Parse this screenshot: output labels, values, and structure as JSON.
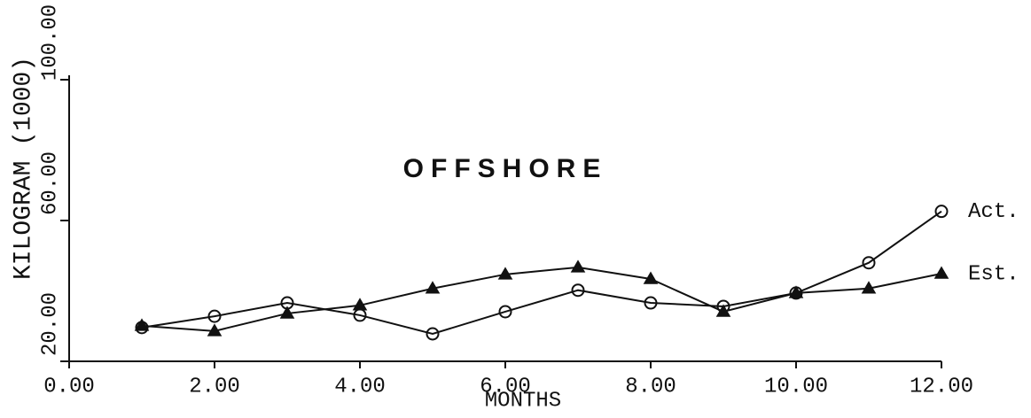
{
  "chart_data": {
    "type": "line",
    "title": "OFFSHORE",
    "xlabel": "MONTHS",
    "ylabel": "KILOGRAM (1000)",
    "xlim": [
      0,
      12
    ],
    "ylim": [
      20,
      100
    ],
    "xticks": [
      {
        "value": 0,
        "label": "0.00"
      },
      {
        "value": 2,
        "label": "2.00"
      },
      {
        "value": 4,
        "label": "4.00"
      },
      {
        "value": 6,
        "label": "6.00"
      },
      {
        "value": 8,
        "label": "8.00"
      },
      {
        "value": 10,
        "label": "10.00"
      },
      {
        "value": 12,
        "label": "12.00"
      }
    ],
    "yticks": [
      {
        "value": 20,
        "label": "20.00"
      },
      {
        "value": 60,
        "label": "60.00"
      },
      {
        "value": 100,
        "label": "100.00"
      }
    ],
    "x": [
      1,
      2,
      3,
      4,
      5,
      6,
      7,
      8,
      9,
      10,
      11,
      12
    ],
    "series": [
      {
        "name": "Act.",
        "color": "#111111",
        "marker": "circle",
        "values": [
          29.6,
          32.8,
          36.6,
          33.1,
          27.8,
          34.1,
          40.2,
          36.6,
          35.6,
          39.4,
          48.0,
          62.6
        ]
      },
      {
        "name": "Est.",
        "color": "#111111",
        "marker": "triangle",
        "values": [
          30.1,
          28.6,
          33.6,
          35.9,
          40.7,
          44.7,
          46.7,
          43.4,
          34.1,
          39.4,
          40.7,
          44.9
        ]
      }
    ]
  }
}
